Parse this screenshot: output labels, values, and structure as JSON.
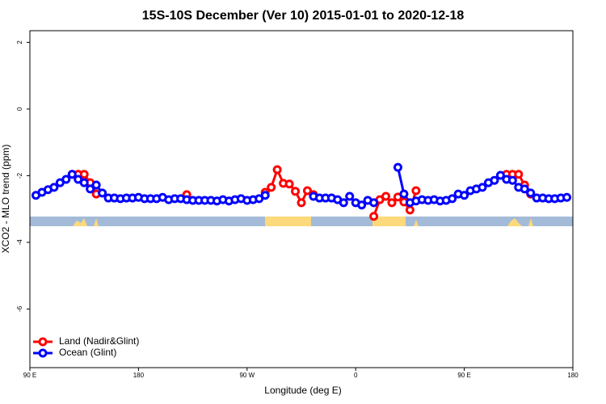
{
  "chart_data": {
    "type": "line",
    "title": "15S-10S December (Ver 10)   2015-01-01 to 2020-12-18",
    "xlabel": "Longitude (deg E)",
    "ylabel": "XCO2 - MLO trend (ppm)",
    "x": [
      95,
      100,
      105,
      110,
      115,
      120,
      125,
      130,
      135,
      140,
      145,
      150,
      155,
      160,
      165,
      170,
      175,
      180,
      185,
      190,
      195,
      200,
      205,
      210,
      215,
      220,
      225,
      230,
      235,
      240,
      245,
      250,
      255,
      260,
      265,
      270,
      275,
      280,
      285,
      290,
      295,
      300,
      305,
      310,
      315,
      320,
      325,
      330,
      335,
      340,
      345,
      350,
      355,
      360,
      365,
      370,
      375,
      380,
      385,
      390,
      395,
      400,
      405,
      410,
      415,
      420,
      425,
      430,
      435,
      440,
      445,
      450,
      455,
      460,
      465,
      470,
      475,
      480,
      485,
      490,
      495,
      500,
      505,
      510,
      515,
      520,
      525,
      530,
      535
    ],
    "series": [
      {
        "name": "Land (Nadir&Glint)",
        "color": "#ff0000",
        "values": [
          null,
          null,
          null,
          null,
          null,
          null,
          -1.96,
          -1.96,
          -1.96,
          -2.21,
          -2.55,
          null,
          null,
          null,
          null,
          null,
          null,
          null,
          null,
          null,
          null,
          null,
          null,
          null,
          null,
          -2.57,
          null,
          null,
          null,
          null,
          null,
          null,
          null,
          null,
          null,
          null,
          null,
          null,
          -2.5,
          -2.35,
          -1.82,
          -2.23,
          -2.25,
          -2.47,
          -2.81,
          -2.45,
          -2.57,
          null,
          null,
          null,
          null,
          null,
          null,
          null,
          null,
          null,
          -3.22,
          -2.72,
          -2.62,
          -2.81,
          -2.64,
          -2.79,
          -3.03,
          -2.45,
          null,
          null,
          null,
          null,
          null,
          null,
          null,
          null,
          null,
          null,
          null,
          null,
          null,
          null,
          -1.96,
          -1.96,
          -1.96,
          -2.28,
          -2.55,
          null,
          null,
          null,
          null,
          null,
          null
        ]
      },
      {
        "name": "Ocean (Glint)",
        "color": "#0000ff",
        "values": [
          -2.59,
          -2.5,
          -2.42,
          -2.35,
          -2.21,
          -2.11,
          -1.96,
          -2.11,
          -2.21,
          -2.4,
          -2.28,
          -2.52,
          -2.67,
          -2.67,
          -2.69,
          -2.67,
          -2.67,
          -2.65,
          -2.69,
          -2.69,
          -2.69,
          -2.65,
          -2.72,
          -2.69,
          -2.69,
          -2.72,
          -2.74,
          -2.74,
          -2.74,
          -2.74,
          -2.76,
          -2.72,
          -2.76,
          -2.72,
          -2.69,
          -2.74,
          -2.72,
          -2.69,
          -2.59,
          null,
          null,
          null,
          null,
          null,
          null,
          null,
          -2.62,
          -2.67,
          -2.67,
          -2.67,
          -2.72,
          -2.81,
          -2.62,
          -2.81,
          -2.88,
          -2.74,
          -2.81,
          null,
          null,
          null,
          -1.75,
          -2.55,
          -2.81,
          -2.76,
          -2.72,
          -2.74,
          -2.72,
          -2.76,
          -2.74,
          -2.69,
          -2.55,
          -2.59,
          -2.45,
          -2.4,
          -2.35,
          -2.21,
          -2.14,
          -1.99,
          -2.11,
          -2.14,
          -2.35,
          -2.4,
          -2.52,
          -2.67,
          -2.67,
          -2.69,
          -2.69,
          -2.67,
          -2.65
        ]
      }
    ],
    "xlim": [
      90,
      540
    ],
    "xticks": [
      {
        "value": 90,
        "label": "90 E"
      },
      {
        "value": 180,
        "label": "180"
      },
      {
        "value": 270,
        "label": "90 W"
      },
      {
        "value": 360,
        "label": "0"
      },
      {
        "value": 450,
        "label": "90 E"
      },
      {
        "value": 540,
        "label": "180"
      }
    ],
    "ylim": [
      -7.76,
      2.35
    ],
    "yticks": [
      2,
      0,
      -2,
      -4,
      -6
    ],
    "legend": "bottom-left"
  }
}
